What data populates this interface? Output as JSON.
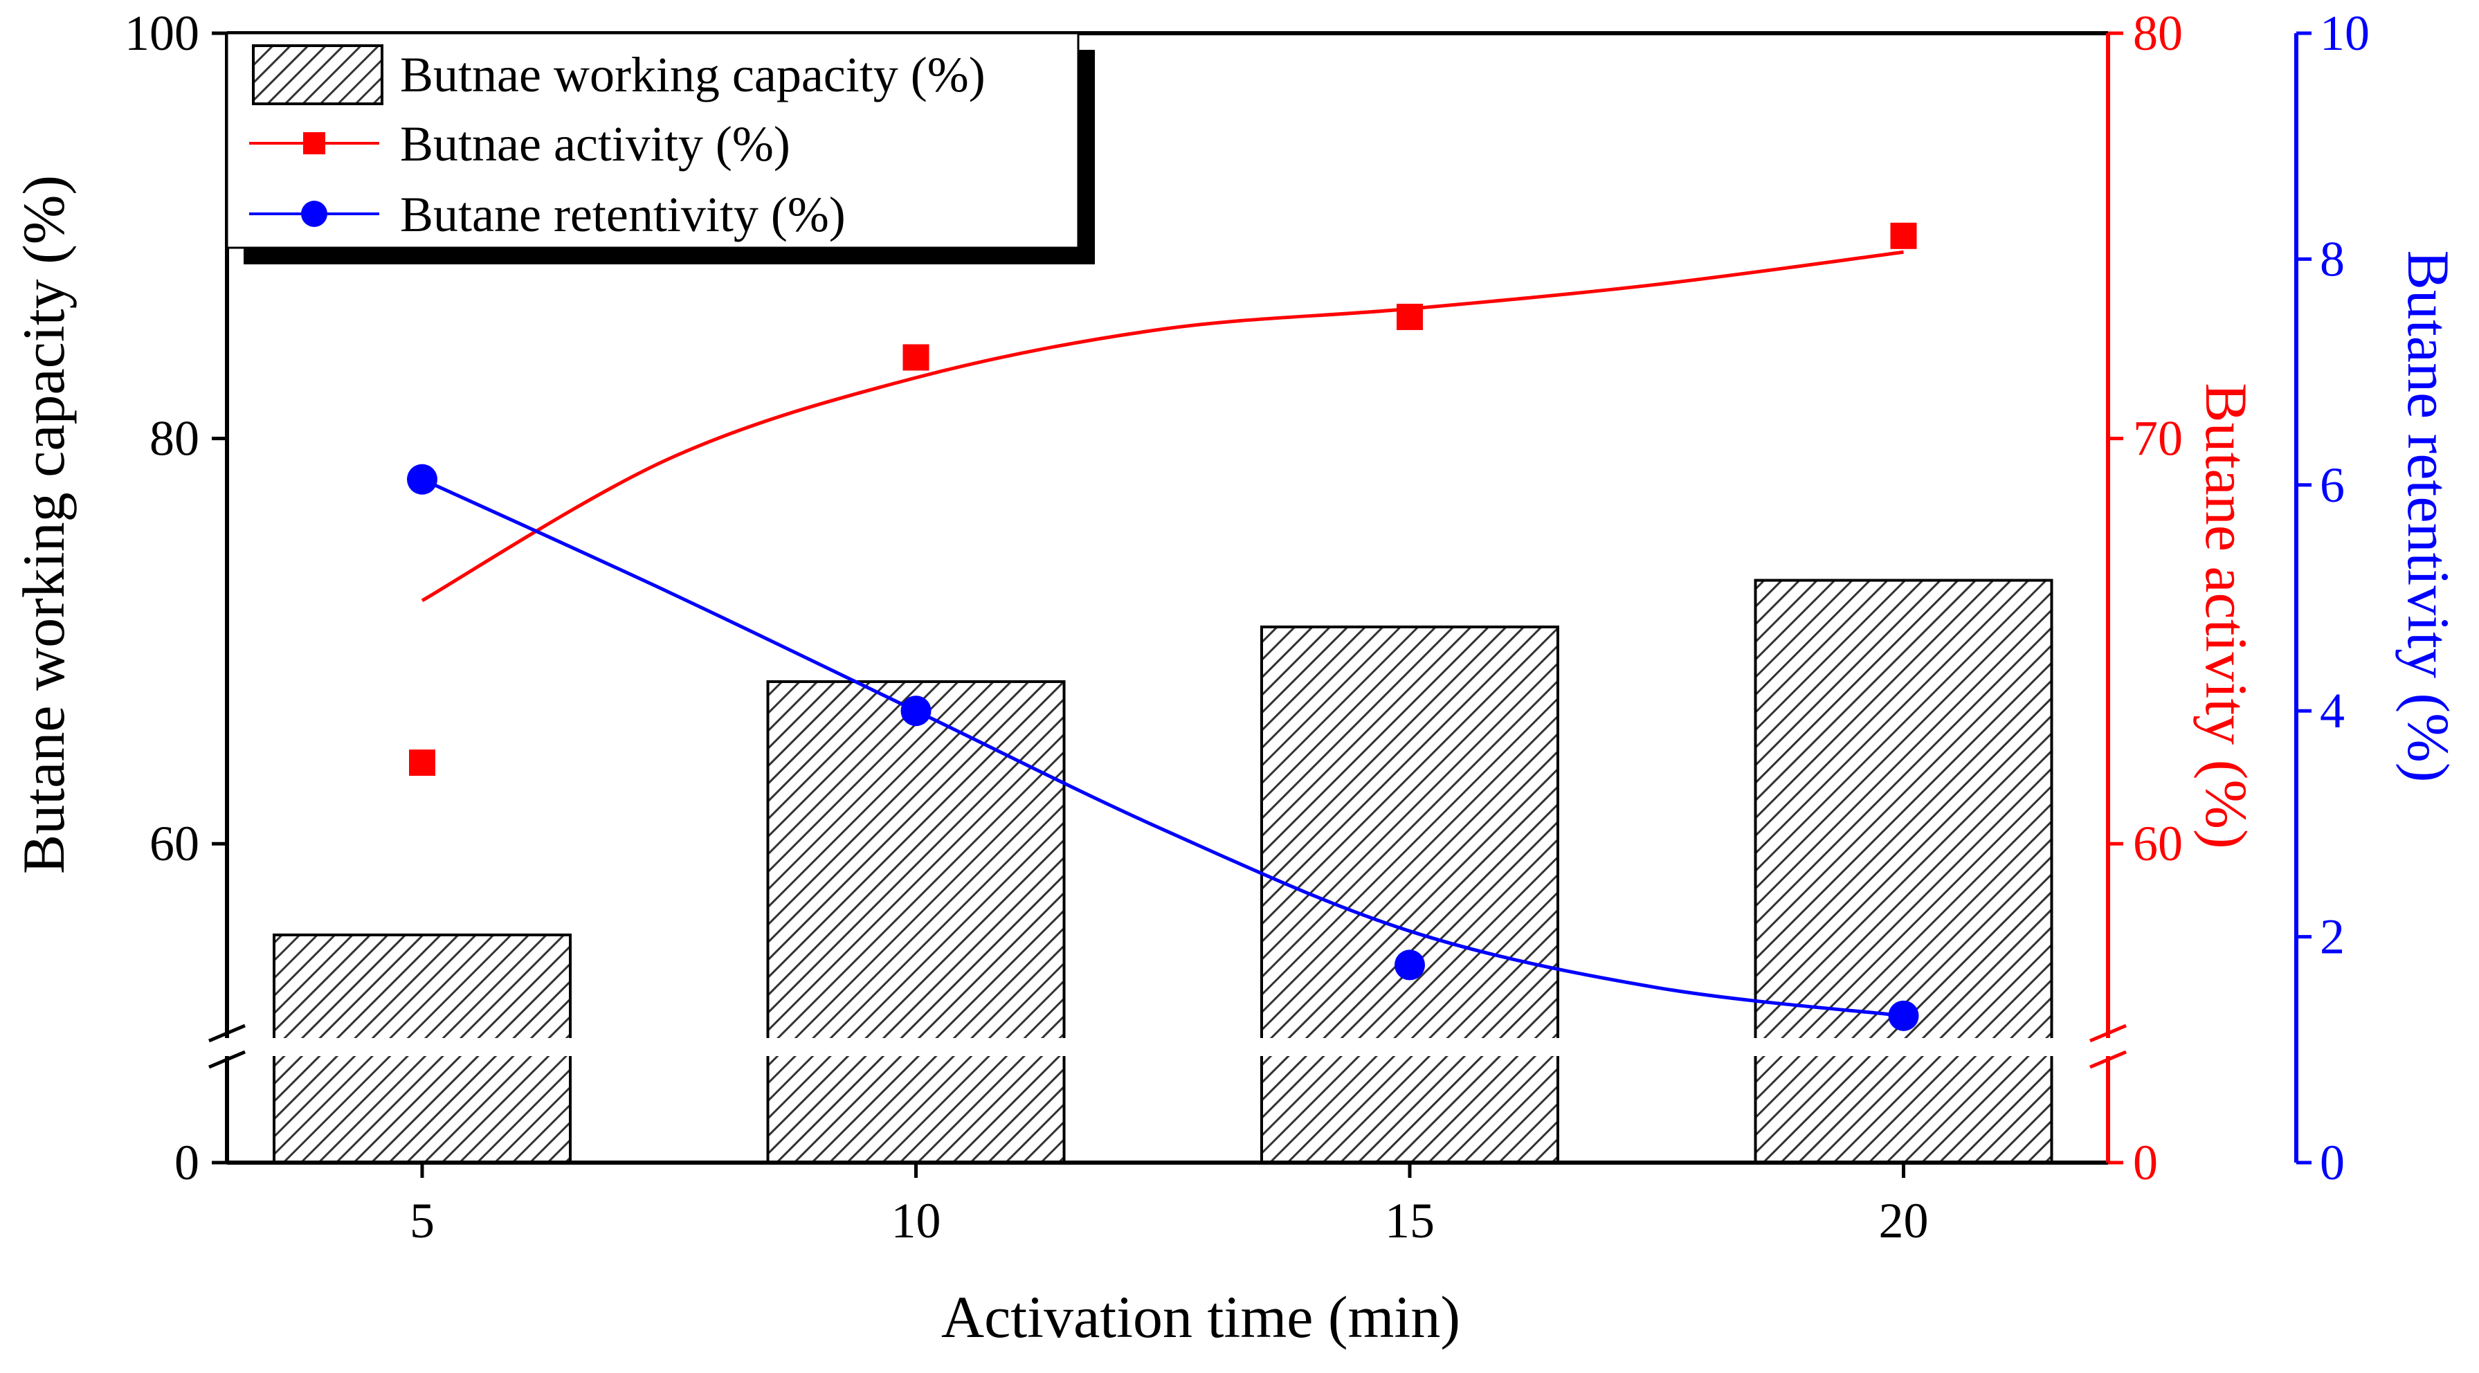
{
  "chart_data": {
    "type": "bar+line",
    "x": [
      5,
      10,
      15,
      20
    ],
    "categories": [
      "5",
      "10",
      "15",
      "20"
    ],
    "xlabel": "Activation time (min)",
    "bars": {
      "name": "Butnae working capacity (%)",
      "values": [
        55.5,
        68.0,
        70.7,
        73.0
      ],
      "color": "#444444"
    },
    "series": [
      {
        "name": "Butnae activity (%)",
        "axis": "right1",
        "color": "#ff0000",
        "marker": "square",
        "values": [
          62.0,
          72.0,
          73.0,
          75.0
        ],
        "fit_curve": [
          [
            5,
            66.0
          ],
          [
            7.5,
            69.5
          ],
          [
            10,
            71.5
          ],
          [
            12.5,
            72.7
          ],
          [
            15,
            73.2
          ],
          [
            17.5,
            73.8
          ],
          [
            20,
            74.6
          ]
        ]
      },
      {
        "name": "Butane retentivity (%)",
        "axis": "right2",
        "color": "#0000ff",
        "marker": "circle",
        "values": [
          6.05,
          4.0,
          1.75,
          1.3
        ],
        "fit_curve": [
          [
            5,
            6.05
          ],
          [
            7.5,
            5.05
          ],
          [
            10,
            4.0
          ],
          [
            12.5,
            2.95
          ],
          [
            15,
            2.05
          ],
          [
            17.5,
            1.55
          ],
          [
            20,
            1.3
          ]
        ]
      }
    ],
    "axes": {
      "left": {
        "label": "Butane working capacity (%)",
        "ticks": [
          "0",
          "60",
          "80",
          "100"
        ],
        "break": true,
        "range_upper": [
          50,
          100
        ],
        "range_lower": [
          0,
          50
        ]
      },
      "right1": {
        "label": "Butane activity (%)",
        "ticks": [
          "0",
          "60",
          "70",
          "80"
        ],
        "break": true,
        "range_upper": [
          55,
          80
        ],
        "color": "#ff0000"
      },
      "right2": {
        "label": "Butane retentivity (%)",
        "ticks": [
          "0",
          "2",
          "4",
          "6",
          "8",
          "10"
        ],
        "range": [
          0,
          10
        ],
        "color": "#0000ff"
      }
    },
    "legend": {
      "position": "top-left",
      "entries": [
        "Butnae working capacity (%)",
        "Butnae activity (%)",
        "Butane retentivity (%)"
      ]
    }
  }
}
